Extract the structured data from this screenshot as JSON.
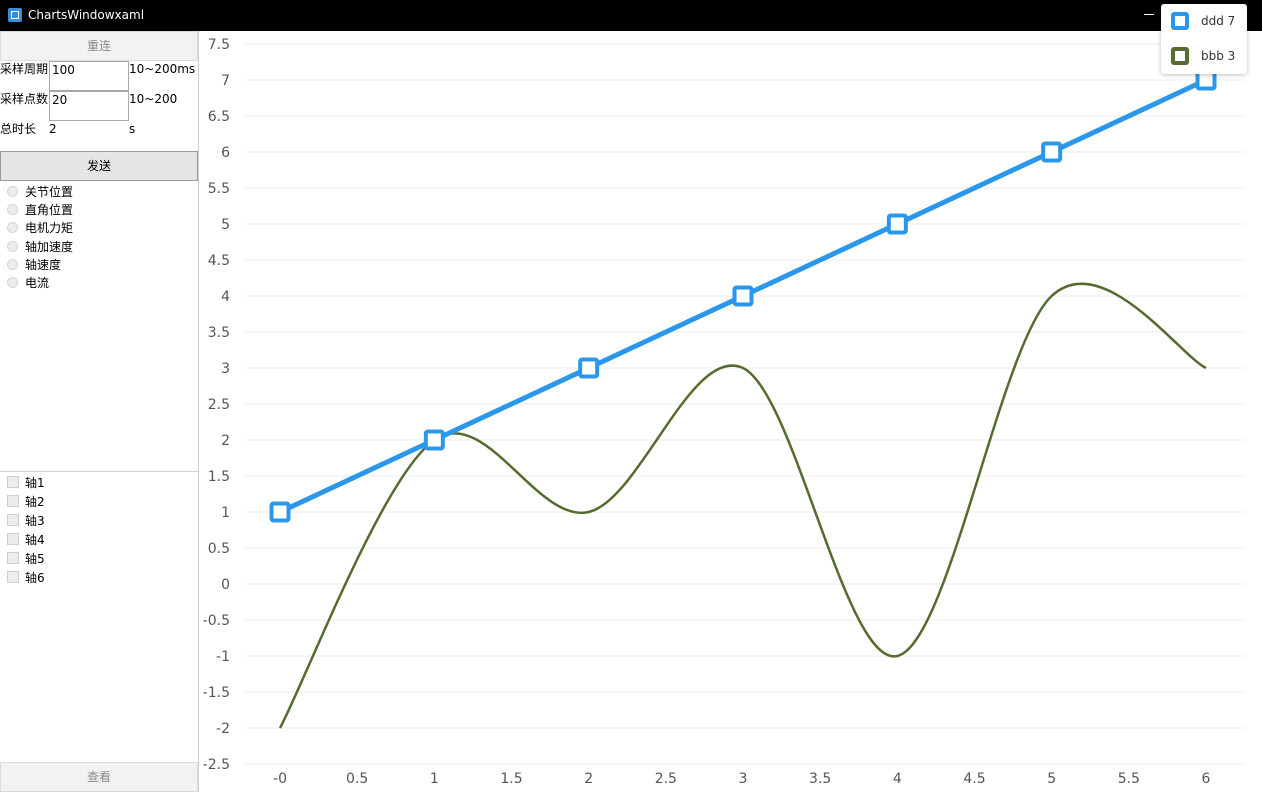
{
  "window": {
    "title": "ChartsWindowxaml"
  },
  "panel": {
    "reconnect_label": "重连",
    "sample_period_label": "采样周期",
    "sample_period_value": "100",
    "sample_period_range": "10~200ms",
    "sample_points_label": "采样点数",
    "sample_points_value": "20",
    "sample_points_range": "10~200",
    "duration_label": "总时长",
    "duration_value": "2",
    "duration_unit": "s",
    "send_label": "发送",
    "radios": [
      "关节位置",
      "直角位置",
      "电机力矩",
      "轴加速度",
      "轴速度",
      "电流"
    ],
    "axes": [
      "轴1",
      "轴2",
      "轴3",
      "轴4",
      "轴5",
      "轴6"
    ],
    "view_label": "查看"
  },
  "legend": {
    "items": [
      {
        "label": "ddd 7",
        "color": "#2b97ea"
      },
      {
        "label": "bbb 3",
        "color": "#556b2f"
      }
    ]
  },
  "chart_data": {
    "type": "line",
    "x": [
      0,
      1,
      2,
      3,
      4,
      5,
      6
    ],
    "x_tick_labels": [
      "-0",
      "0.5",
      "1",
      "1.5",
      "2",
      "2.5",
      "3",
      "3.5",
      "4",
      "4.5",
      "5",
      "5.5",
      "6"
    ],
    "y_tick_labels": [
      "7.5",
      "7",
      "6.5",
      "6",
      "5.5",
      "5",
      "4.5",
      "4",
      "3.5",
      "3",
      "2.5",
      "2",
      "1.5",
      "1",
      "0.5",
      "0",
      "-0.5",
      "-1",
      "-1.5",
      "-2",
      "-2.5"
    ],
    "xlim": [
      -0.5,
      6.25
    ],
    "ylim": [
      -2.5,
      7.5
    ],
    "grid": true,
    "legend_position": "top-right",
    "series": [
      {
        "name": "ddd 7",
        "values": [
          1,
          2,
          3,
          4,
          5,
          6,
          7
        ],
        "color": "#2b97ea",
        "markers": "square",
        "smooth": false
      },
      {
        "name": "bbb 3",
        "values": [
          -2,
          2,
          1,
          3,
          -1,
          4,
          3
        ],
        "color": "#556b2f",
        "markers": "none",
        "smooth": true
      }
    ]
  }
}
